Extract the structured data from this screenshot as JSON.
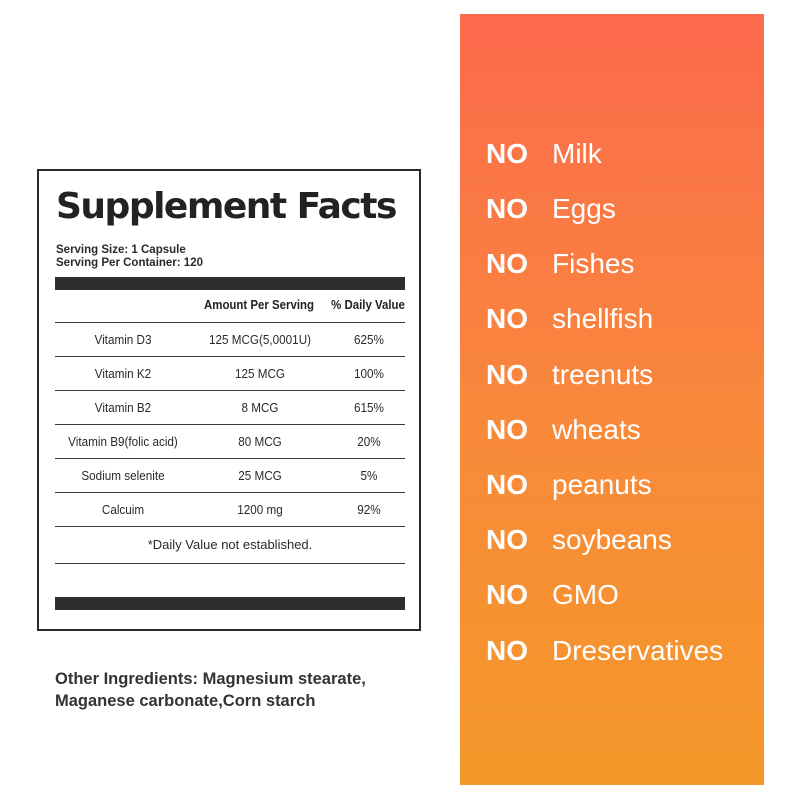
{
  "facts": {
    "title": "Supplement Facts",
    "serving_size": "Serving Size: 1 Capsule",
    "serving_per_container": "Serving Per Container: 120",
    "header_amount": "Amount Per Serving",
    "header_dv": "% Daily Value",
    "rows": [
      {
        "name": "Vitamin D3",
        "amount": "125 MCG(5,0001U)",
        "dv": "625%"
      },
      {
        "name": "Vitamin K2",
        "amount": "125 MCG",
        "dv": "100%"
      },
      {
        "name": "Vitamin B2",
        "amount": "8 MCG",
        "dv": "615%"
      },
      {
        "name": "Vitamin B9(folic acid)",
        "amount": "80 MCG",
        "dv": "20%"
      },
      {
        "name": "Sodium selenite",
        "amount": "25 MCG",
        "dv": "5%"
      },
      {
        "name": "Calcuim",
        "amount": "1200 mg",
        "dv": "92%"
      }
    ],
    "footnote": "*Daily Value not established."
  },
  "other_ingredients": {
    "line1": "Other  Ingredients: Magnesium stearate,",
    "line2": "Maganese carbonate,Corn starch"
  },
  "free_from": {
    "prefix": "NO",
    "items": [
      "Milk",
      "Eggs",
      "Fishes",
      "shellfish",
      "treenuts",
      "wheats",
      "peanuts",
      "soybeans",
      "GMO",
      "Dreservatives"
    ]
  },
  "colors": {
    "panel_top": "#fc6a4d",
    "panel_bottom": "#f49829",
    "text_dark": "#222222"
  }
}
